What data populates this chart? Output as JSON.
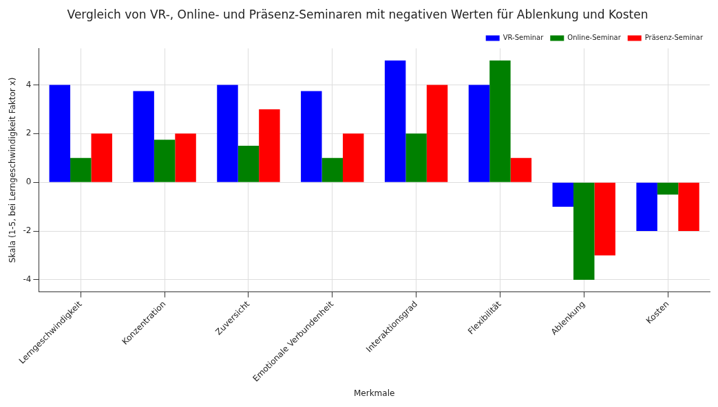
{
  "chart_data": {
    "type": "bar",
    "title": "Vergleich von VR-, Online- und Präsenz-Seminaren mit negativen Werten für Ablenkung und Kosten",
    "xlabel": "Merkmale",
    "ylabel": "Skala (1-5, bei Lerngeschwindigkeit Faktor x)",
    "categories": [
      "Lerngeschwindigkeit",
      "Konzentration",
      "Zuversicht",
      "Emotionale Verbundenheit",
      "Interaktionsgrad",
      "Flexibilität",
      "Ablenkung",
      "Kosten"
    ],
    "series": [
      {
        "name": "VR-Seminar",
        "color": "#0000ff",
        "values": [
          4,
          3.75,
          4,
          3.75,
          5,
          4,
          -1,
          -2
        ]
      },
      {
        "name": "Online-Seminar",
        "color": "#008000",
        "values": [
          1,
          1.75,
          1.5,
          1,
          2,
          5,
          -4,
          -0.5
        ]
      },
      {
        "name": "Präsenz-Seminar",
        "color": "#ff0000",
        "values": [
          2,
          2,
          3,
          2,
          4,
          1,
          -3,
          -2
        ]
      }
    ],
    "ylim": [
      -4.5,
      5.5
    ],
    "yticks": [
      -4,
      -2,
      0,
      2,
      4
    ],
    "grid": true,
    "legend": "top right"
  }
}
